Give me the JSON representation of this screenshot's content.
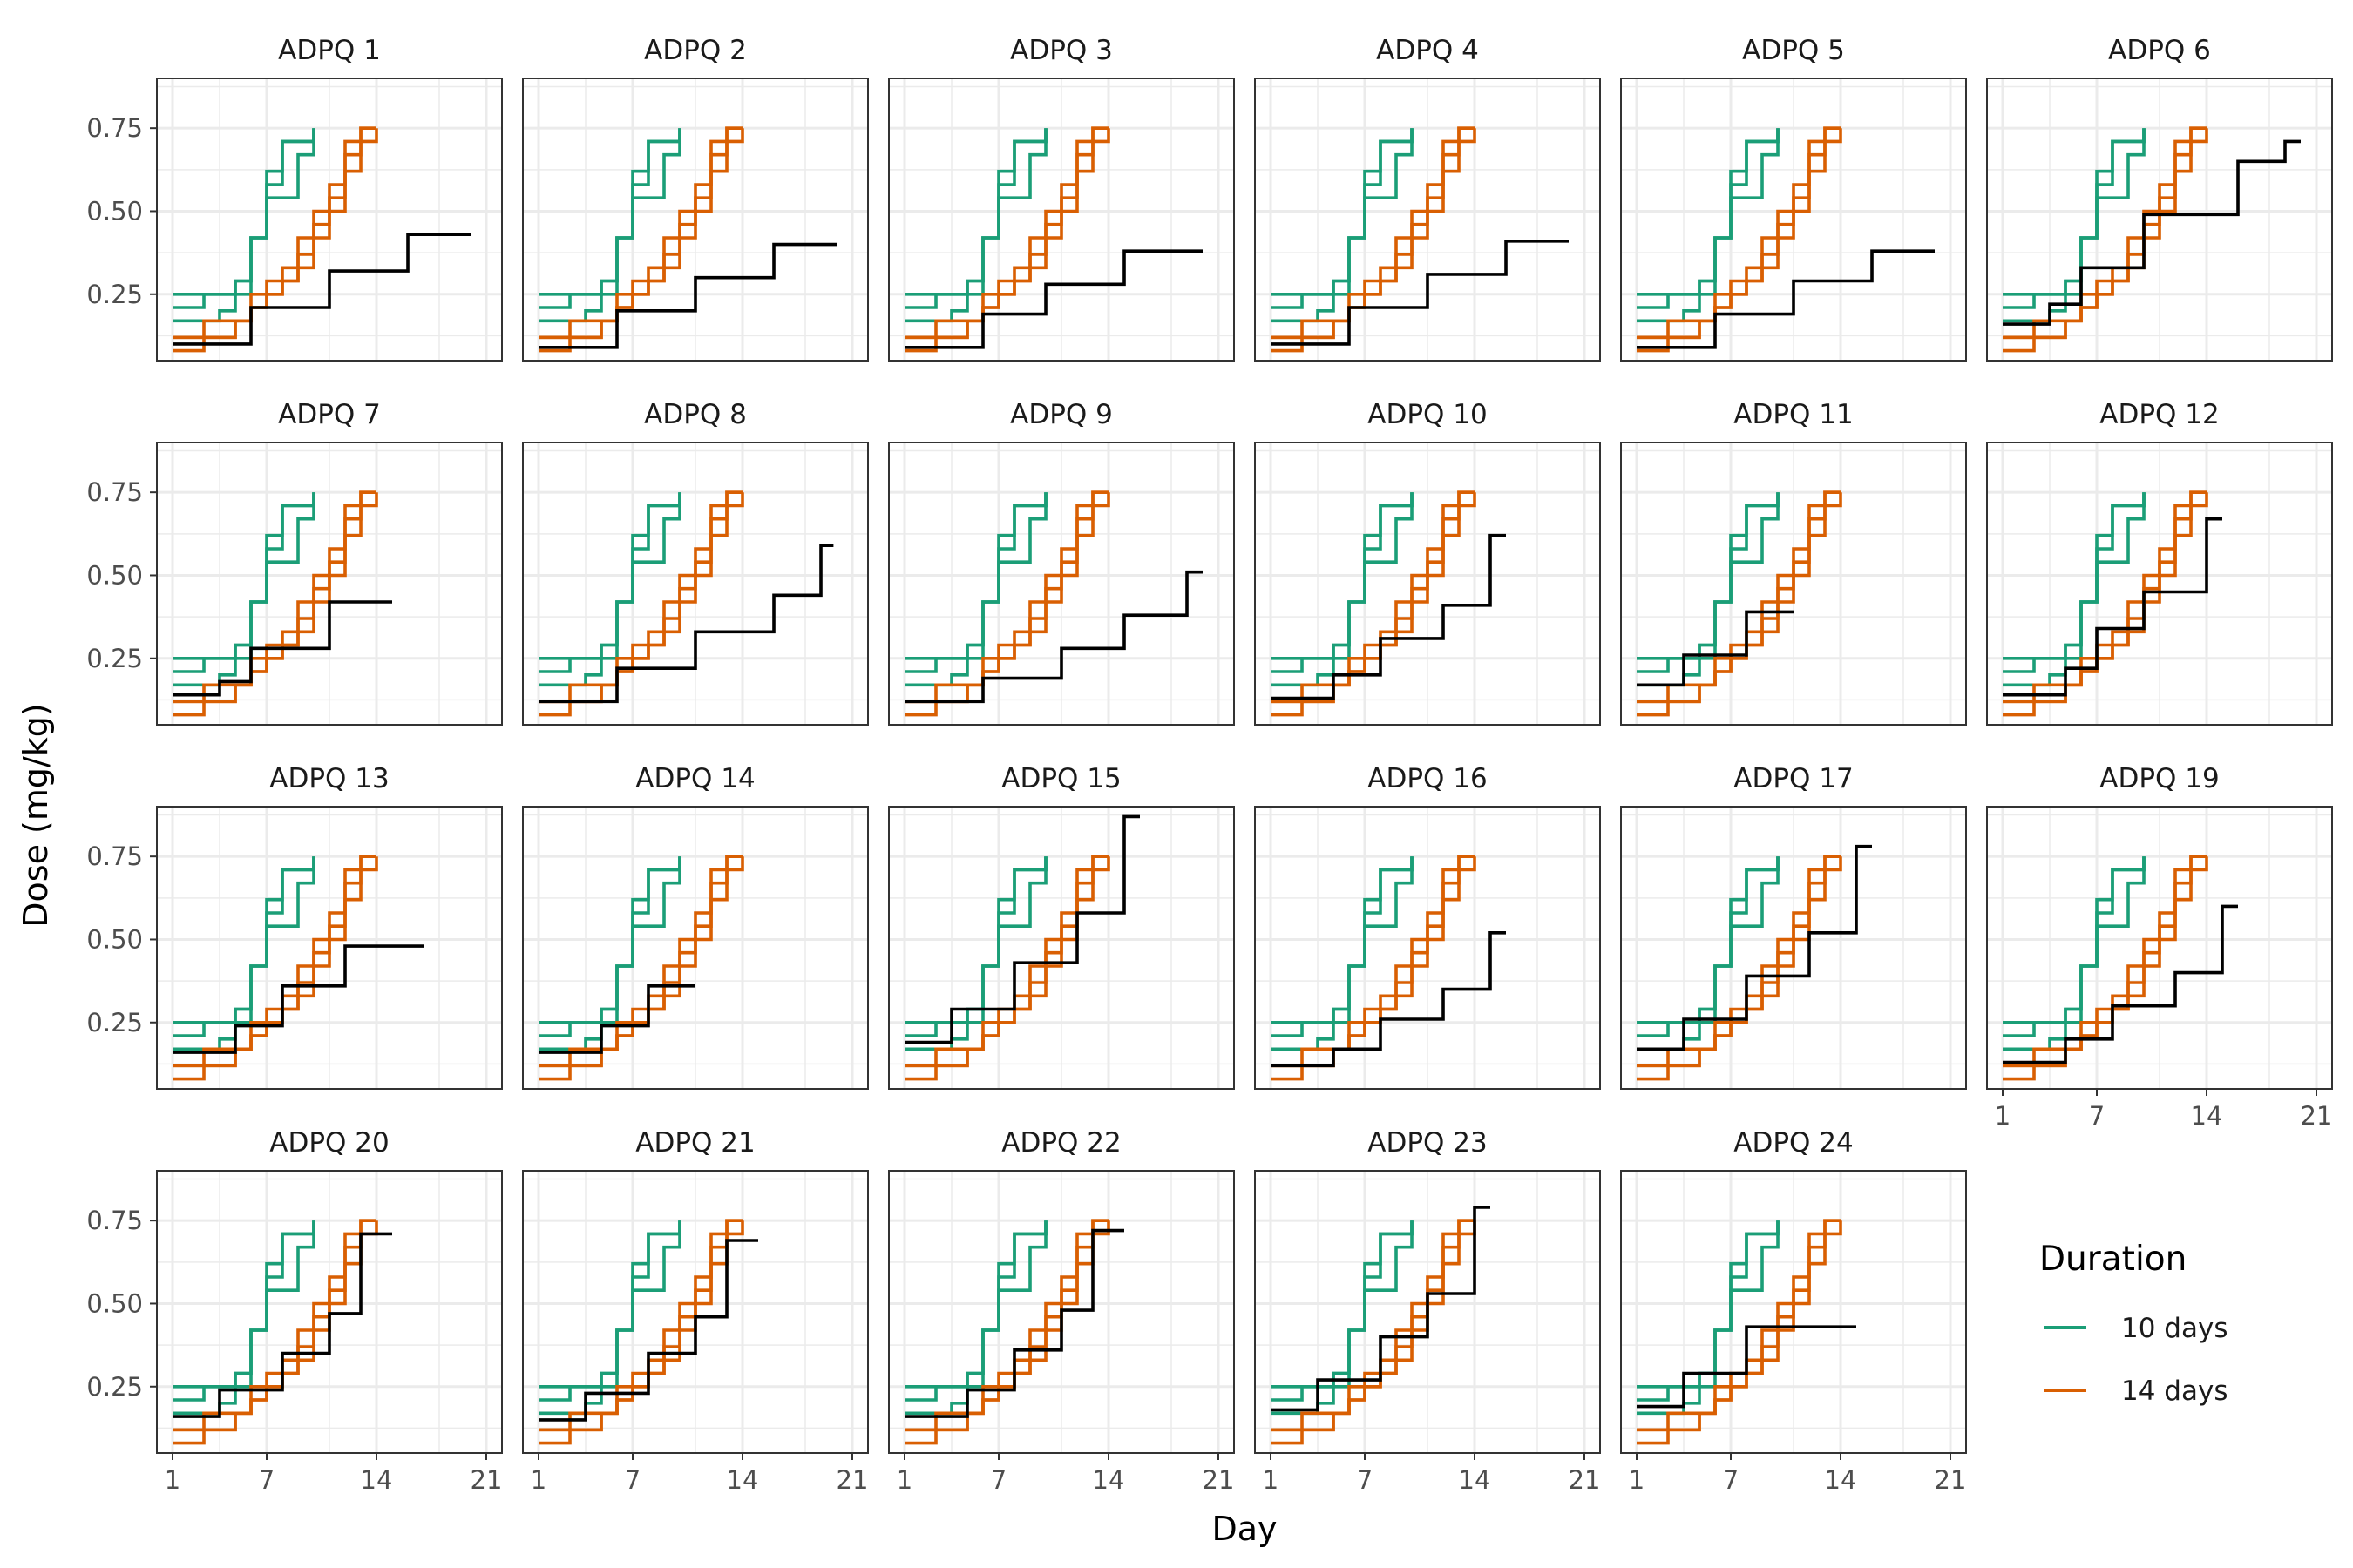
{
  "chart_data": {
    "type": "line",
    "step": true,
    "xlabel": "Day",
    "ylabel": "Dose (mg/kg)",
    "xlim": [
      0,
      22
    ],
    "ylim": [
      0.05,
      0.9
    ],
    "x_ticks": [
      1,
      7,
      14,
      21
    ],
    "y_ticks": [
      0.25,
      0.5,
      0.75
    ],
    "y_tick_labels": [
      "0.25",
      "0.50",
      "0.75"
    ],
    "grid": true,
    "legend": {
      "title": "Duration",
      "position": "right",
      "entries": [
        {
          "label": "10 days",
          "color": "#1b9e77"
        },
        {
          "label": "14 days",
          "color": "#d95f02"
        }
      ]
    },
    "colors": {
      "ten_days": "#1b9e77",
      "fourteen_days": "#d95f02",
      "individual": "#000000"
    },
    "reference_10_days": [
      {
        "x": [
          1,
          4,
          5,
          6,
          7,
          8,
          10
        ],
        "y": [
          0.17,
          0.2,
          0.25,
          0.42,
          0.58,
          0.71,
          0.75
        ]
      },
      {
        "x": [
          1,
          3,
          5,
          6,
          7,
          9,
          10
        ],
        "y": [
          0.21,
          0.25,
          0.29,
          0.42,
          0.54,
          0.67,
          0.75
        ]
      },
      {
        "x": [
          1,
          4,
          5,
          6,
          7,
          8,
          10
        ],
        "y": [
          0.25,
          0.25,
          0.29,
          0.42,
          0.62,
          0.71,
          0.75
        ]
      }
    ],
    "reference_14_days": [
      {
        "x": [
          1,
          3,
          5,
          6,
          7,
          8,
          9,
          10,
          11,
          12,
          13,
          14
        ],
        "y": [
          0.08,
          0.12,
          0.17,
          0.21,
          0.25,
          0.29,
          0.33,
          0.42,
          0.5,
          0.62,
          0.71,
          0.75
        ]
      },
      {
        "x": [
          1,
          4,
          5,
          6,
          7,
          8,
          9,
          10,
          11,
          12,
          13,
          14
        ],
        "y": [
          0.12,
          0.12,
          0.17,
          0.21,
          0.25,
          0.29,
          0.37,
          0.46,
          0.54,
          0.67,
          0.75,
          0.75
        ]
      },
      {
        "x": [
          1,
          3,
          4,
          6,
          7,
          8,
          9,
          10,
          11,
          12,
          13,
          14
        ],
        "y": [
          0.12,
          0.17,
          0.17,
          0.25,
          0.29,
          0.33,
          0.42,
          0.5,
          0.58,
          0.71,
          0.75,
          0.75
        ]
      }
    ],
    "panels": [
      {
        "label": "ADPQ 1",
        "x": [
          1,
          6,
          11,
          16,
          20
        ],
        "y": [
          0.1,
          0.21,
          0.32,
          0.43,
          0.43
        ]
      },
      {
        "label": "ADPQ 2",
        "x": [
          1,
          6,
          11,
          16,
          20
        ],
        "y": [
          0.09,
          0.2,
          0.3,
          0.4,
          0.4
        ]
      },
      {
        "label": "ADPQ 3",
        "x": [
          1,
          6,
          10,
          15,
          20
        ],
        "y": [
          0.09,
          0.19,
          0.28,
          0.38,
          0.38
        ]
      },
      {
        "label": "ADPQ 4",
        "x": [
          1,
          6,
          11,
          16,
          20
        ],
        "y": [
          0.1,
          0.21,
          0.31,
          0.41,
          0.41
        ]
      },
      {
        "label": "ADPQ 5",
        "x": [
          1,
          6,
          11,
          16,
          20
        ],
        "y": [
          0.09,
          0.19,
          0.29,
          0.38,
          0.38
        ]
      },
      {
        "label": "ADPQ 6",
        "x": [
          1,
          4,
          6,
          10,
          16,
          19,
          20
        ],
        "y": [
          0.16,
          0.22,
          0.33,
          0.49,
          0.65,
          0.71,
          0.71
        ]
      },
      {
        "label": "ADPQ 7",
        "x": [
          1,
          4,
          6,
          11,
          15
        ],
        "y": [
          0.14,
          0.18,
          0.28,
          0.42,
          0.42
        ]
      },
      {
        "label": "ADPQ 8",
        "x": [
          1,
          6,
          11,
          16,
          19,
          19.8
        ],
        "y": [
          0.12,
          0.22,
          0.33,
          0.44,
          0.59,
          0.59
        ]
      },
      {
        "label": "ADPQ 9",
        "x": [
          1,
          6,
          11,
          15,
          19,
          20
        ],
        "y": [
          0.12,
          0.19,
          0.28,
          0.38,
          0.51,
          0.51
        ]
      },
      {
        "label": "ADPQ 10",
        "x": [
          1,
          5,
          8,
          12,
          15,
          16
        ],
        "y": [
          0.13,
          0.2,
          0.31,
          0.41,
          0.62,
          0.62
        ]
      },
      {
        "label": "ADPQ 11",
        "x": [
          1,
          4,
          8,
          11
        ],
        "y": [
          0.17,
          0.26,
          0.39,
          0.39
        ]
      },
      {
        "label": "ADPQ 12",
        "x": [
          1,
          5,
          7,
          10,
          14,
          15
        ],
        "y": [
          0.14,
          0.22,
          0.34,
          0.45,
          0.67,
          0.67
        ]
      },
      {
        "label": "ADPQ 13",
        "x": [
          1,
          5,
          8,
          12,
          17
        ],
        "y": [
          0.16,
          0.24,
          0.36,
          0.48,
          0.48
        ]
      },
      {
        "label": "ADPQ 14",
        "x": [
          1,
          5,
          8,
          11
        ],
        "y": [
          0.16,
          0.24,
          0.36,
          0.36
        ]
      },
      {
        "label": "ADPQ 15",
        "x": [
          1,
          4,
          8,
          12,
          15,
          16
        ],
        "y": [
          0.19,
          0.29,
          0.43,
          0.58,
          0.87,
          0.87
        ]
      },
      {
        "label": "ADPQ 16",
        "x": [
          1,
          5,
          8,
          12,
          15,
          16
        ],
        "y": [
          0.12,
          0.17,
          0.26,
          0.35,
          0.52,
          0.52
        ]
      },
      {
        "label": "ADPQ 17",
        "x": [
          1,
          4,
          8,
          12,
          15,
          16
        ],
        "y": [
          0.17,
          0.26,
          0.39,
          0.52,
          0.78,
          0.78
        ]
      },
      {
        "label": "ADPQ 19",
        "x": [
          1,
          5,
          8,
          12,
          15,
          16
        ],
        "y": [
          0.13,
          0.2,
          0.3,
          0.4,
          0.6,
          0.6
        ]
      },
      {
        "label": "ADPQ 20",
        "x": [
          1,
          4,
          8,
          11,
          13,
          15
        ],
        "y": [
          0.16,
          0.24,
          0.35,
          0.47,
          0.71,
          0.71
        ]
      },
      {
        "label": "ADPQ 21",
        "x": [
          1,
          4,
          8,
          11,
          13,
          15
        ],
        "y": [
          0.15,
          0.23,
          0.35,
          0.46,
          0.69,
          0.69
        ]
      },
      {
        "label": "ADPQ 22",
        "x": [
          1,
          5,
          8,
          11,
          13,
          15
        ],
        "y": [
          0.16,
          0.24,
          0.36,
          0.48,
          0.72,
          0.72
        ]
      },
      {
        "label": "ADPQ 23",
        "x": [
          1,
          4,
          8,
          11,
          14,
          15
        ],
        "y": [
          0.18,
          0.27,
          0.4,
          0.53,
          0.79,
          0.79
        ]
      },
      {
        "label": "ADPQ 24",
        "x": [
          1,
          4,
          8,
          15
        ],
        "y": [
          0.19,
          0.29,
          0.43,
          0.43
        ]
      }
    ]
  }
}
